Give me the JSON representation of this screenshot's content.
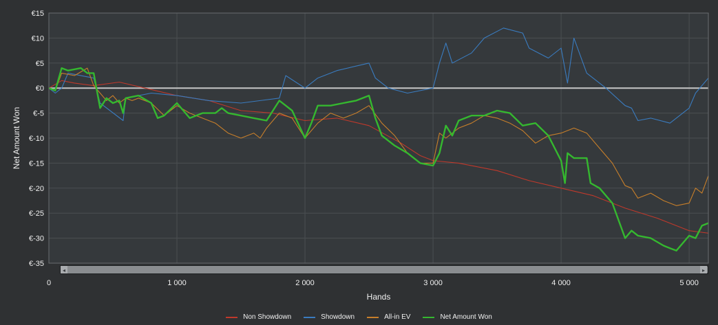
{
  "chart_data": {
    "type": "line",
    "xlabel": "Hands",
    "ylabel": "Net Amount Won",
    "xlim": [
      0,
      5150
    ],
    "ylim": [
      -35,
      15
    ],
    "xticks": [
      0,
      1000,
      2000,
      3000,
      4000,
      5000
    ],
    "xtick_labels": [
      "0",
      "1 000",
      "2 000",
      "3 000",
      "4 000",
      "5 000"
    ],
    "yticks": [
      15,
      10,
      5,
      0,
      -5,
      -10,
      -15,
      -20,
      -25,
      -30,
      -35
    ],
    "ytick_labels": [
      "€15",
      "€10",
      "€5",
      "€0",
      "€-5",
      "€-10",
      "€-15",
      "€-20",
      "€-25",
      "€-30",
      "€-35"
    ],
    "grid": true,
    "legend_position": "bottom-center",
    "series": [
      {
        "name": "Non Showdown",
        "color": "#c0392b",
        "x": [
          0,
          100,
          200,
          350,
          550,
          750,
          1000,
          1250,
          1500,
          1750,
          2000,
          2250,
          2500,
          2750,
          2900,
          3000,
          3200,
          3500,
          3750,
          4000,
          4250,
          4500,
          4750,
          5000,
          5150
        ],
        "y": [
          0,
          1.5,
          1,
          0.5,
          1.2,
          0,
          -1.5,
          -2.5,
          -4.5,
          -5,
          -6.5,
          -6,
          -7.5,
          -11,
          -13.5,
          -14.5,
          -15,
          -16.5,
          -18.5,
          -20,
          -21.5,
          -24,
          -26,
          -28.5,
          -29
        ]
      },
      {
        "name": "Showdown",
        "color": "#3a7cc0",
        "x": [
          0,
          50,
          100,
          150,
          350,
          400,
          580,
          600,
          800,
          1000,
          1250,
          1500,
          1800,
          1850,
          2000,
          2100,
          2250,
          2500,
          2550,
          2650,
          2800,
          3000,
          3050,
          3100,
          3150,
          3300,
          3400,
          3550,
          3700,
          3750,
          3900,
          4000,
          4050,
          4100,
          4200,
          4350,
          4500,
          4550,
          4600,
          4700,
          4850,
          5000,
          5050,
          5150
        ],
        "y": [
          0,
          -1,
          0,
          3,
          2,
          -3,
          -6.5,
          -2,
          -1,
          -1.5,
          -2.5,
          -3,
          -2,
          2.5,
          0,
          2,
          3.5,
          5,
          2,
          0,
          -1,
          0,
          5,
          9,
          5,
          7,
          10,
          12,
          11,
          8,
          6,
          8,
          1,
          10,
          3,
          0,
          -3.5,
          -4,
          -6.5,
          -6,
          -7,
          -4,
          -1,
          2
        ]
      },
      {
        "name": "All-in EV",
        "color": "#c87f2a",
        "x": [
          0,
          50,
          100,
          200,
          300,
          350,
          450,
          500,
          550,
          600,
          650,
          700,
          800,
          900,
          1000,
          1100,
          1300,
          1400,
          1500,
          1600,
          1650,
          1700,
          1800,
          1900,
          2000,
          2100,
          2200,
          2300,
          2400,
          2500,
          2600,
          2700,
          2800,
          2900,
          3000,
          3050,
          3100,
          3200,
          3300,
          3400,
          3500,
          3600,
          3700,
          3800,
          3900,
          4000,
          4100,
          4200,
          4300,
          4400,
          4500,
          4550,
          4600,
          4700,
          4800,
          4900,
          5000,
          5050,
          5100,
          5150
        ],
        "y": [
          0,
          -0.5,
          3,
          2.5,
          4,
          0.5,
          -2.5,
          -1.5,
          -3,
          -2,
          -2.5,
          -2,
          -3,
          -5.5,
          -3.5,
          -5,
          -7,
          -9,
          -10,
          -9,
          -10,
          -8,
          -5,
          -6,
          -10,
          -7,
          -5,
          -6,
          -5,
          -3.5,
          -7,
          -9.5,
          -13,
          -15,
          -15,
          -9,
          -10,
          -8,
          -7,
          -5.5,
          -6,
          -7,
          -8.5,
          -11,
          -9.5,
          -9,
          -8,
          -9,
          -12,
          -15,
          -19.5,
          -20,
          -22,
          -21,
          -22.5,
          -23.5,
          -23,
          -20,
          -21,
          -17.5
        ]
      },
      {
        "name": "Net Amount Won",
        "color": "#35b82f",
        "x": [
          0,
          50,
          100,
          150,
          250,
          300,
          350,
          400,
          450,
          500,
          550,
          580,
          600,
          700,
          800,
          850,
          900,
          1000,
          1100,
          1200,
          1300,
          1350,
          1400,
          1500,
          1600,
          1700,
          1800,
          1850,
          1900,
          2000,
          2050,
          2100,
          2200,
          2300,
          2400,
          2500,
          2550,
          2600,
          2700,
          2800,
          2900,
          3000,
          3050,
          3100,
          3150,
          3200,
          3300,
          3400,
          3500,
          3600,
          3700,
          3800,
          3900,
          4000,
          4030,
          4050,
          4100,
          4200,
          4230,
          4300,
          4400,
          4500,
          4550,
          4600,
          4700,
          4800,
          4850,
          4900,
          5000,
          5050,
          5100,
          5150
        ],
        "y": [
          0,
          -0.5,
          4,
          3.5,
          4,
          3,
          3,
          -4,
          -2,
          -3,
          -2.5,
          -5,
          -2,
          -1.5,
          -3,
          -6,
          -5.5,
          -3,
          -6,
          -5,
          -5,
          -4,
          -5,
          -5.5,
          -6,
          -6.5,
          -2.5,
          -3.5,
          -4.5,
          -10,
          -7,
          -3.5,
          -3.5,
          -3,
          -2.5,
          -1.5,
          -6,
          -9.5,
          -11.5,
          -13,
          -15,
          -15.5,
          -13,
          -7.5,
          -9.5,
          -6.5,
          -5.5,
          -5.5,
          -4.5,
          -5,
          -7.5,
          -7,
          -9.5,
          -14.5,
          -19,
          -13,
          -14,
          -14,
          -19,
          -20,
          -23,
          -30,
          -28.5,
          -29.5,
          -30,
          -31.5,
          -32,
          -32.5,
          -29.5,
          -30,
          -27.5,
          -27
        ]
      }
    ]
  }
}
